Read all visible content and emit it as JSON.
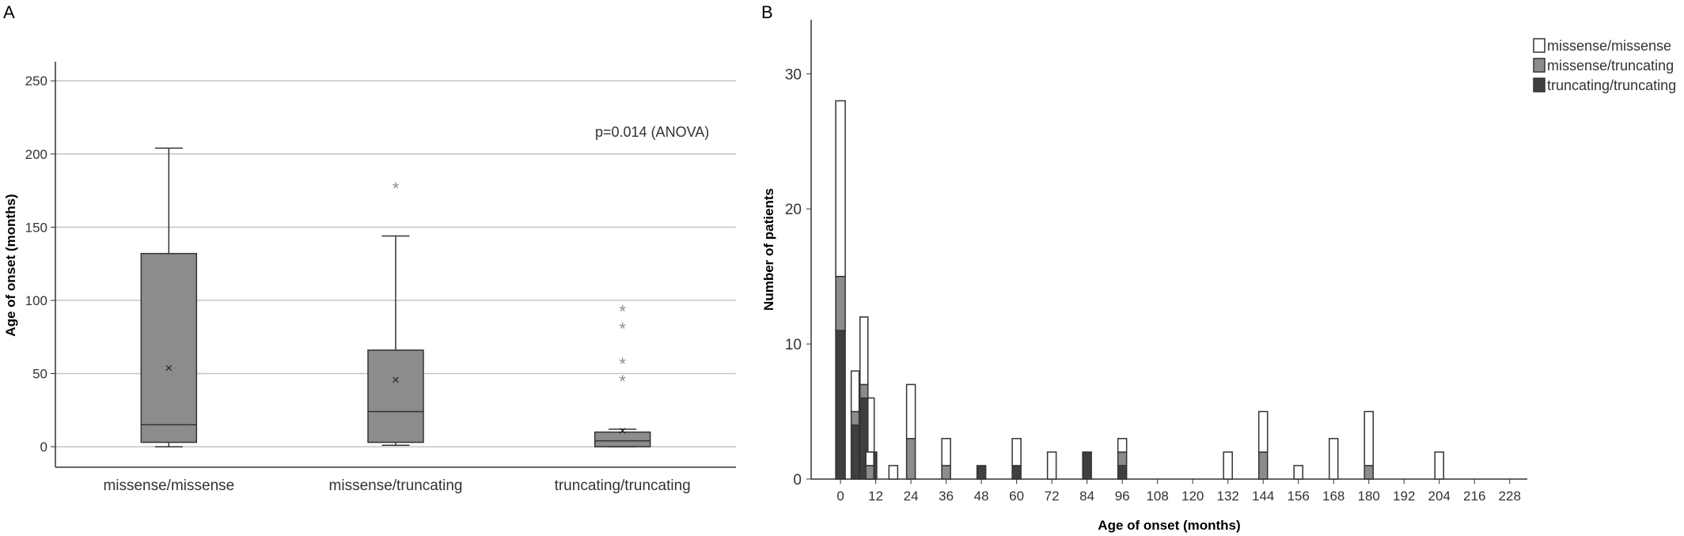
{
  "chart_data": [
    {
      "panel": "A",
      "type": "box",
      "ylabel": "Age of onset (months)",
      "ylim": [
        -14,
        262
      ],
      "yticks": [
        0,
        50,
        100,
        150,
        200,
        250
      ],
      "grid": true,
      "annotation": "p=0.014 (ANOVA)",
      "groups": [
        {
          "label": "missense/missense",
          "min": 0,
          "q1": 3,
          "median": 15,
          "q3": 132,
          "max": 204,
          "mean": 54,
          "outliers": []
        },
        {
          "label": "missense/truncating",
          "min": 1,
          "q1": 3,
          "median": 24,
          "q3": 66,
          "max": 144,
          "mean": 46,
          "outliers": [
            180
          ]
        },
        {
          "label": "truncating/truncating",
          "min": 0,
          "q1": 0,
          "median": 4,
          "q3": 10,
          "max": 12,
          "mean": 11,
          "outliers": [
            48,
            60,
            84,
            96
          ]
        }
      ],
      "box_color": "#8c8c8c"
    },
    {
      "panel": "B",
      "type": "bar",
      "stacked": true,
      "xlabel": "Age of onset (months)",
      "ylabel": "Number of patients",
      "xlim": [
        -10,
        234
      ],
      "ylim": [
        0,
        34
      ],
      "xticks": [
        0,
        12,
        24,
        36,
        48,
        60,
        72,
        84,
        96,
        108,
        120,
        132,
        144,
        156,
        168,
        180,
        192,
        204,
        216,
        228
      ],
      "yticks": [
        0,
        10,
        20,
        30
      ],
      "legend_position": "top-right",
      "x": [
        0,
        6,
        10,
        18,
        24,
        36,
        48,
        60,
        72,
        84,
        96,
        132,
        144,
        156,
        168,
        180,
        204
      ],
      "series": [
        {
          "name": "truncating/truncating",
          "color": "#3f3f3f",
          "values": [
            11,
            4,
            0,
            0,
            0,
            0,
            1,
            1,
            0,
            2,
            1,
            0,
            0,
            0,
            0,
            0,
            0
          ]
        },
        {
          "name": "missense/truncating",
          "color": "#8c8c8c",
          "values": [
            4,
            1,
            1,
            0,
            3,
            1,
            0,
            0,
            0,
            0,
            1,
            0,
            2,
            0,
            0,
            1,
            0
          ]
        },
        {
          "name": "missense/missense",
          "color": "#ffffff",
          "values": [
            13,
            3,
            5,
            1,
            4,
            2,
            0,
            2,
            2,
            0,
            1,
            2,
            3,
            1,
            3,
            4,
            2
          ]
        }
      ],
      "stack_detail": [
        {
          "x": 6,
          "segments": [
            [
              4,
              "#3f3f3f"
            ],
            [
              1,
              "#8c8c8c"
            ],
            [
              3,
              "#ffffff"
            ]
          ]
        },
        {
          "x": 8,
          "segments": [
            [
              6,
              "#3f3f3f"
            ],
            [
              1,
              "#8c8c8c"
            ],
            [
              5,
              "#ffffff"
            ]
          ]
        },
        {
          "x": 12,
          "segments": [
            [
              2,
              "#3f3f3f"
            ]
          ]
        }
      ]
    }
  ],
  "panels": {
    "a_letter": "A",
    "b_letter": "B"
  }
}
